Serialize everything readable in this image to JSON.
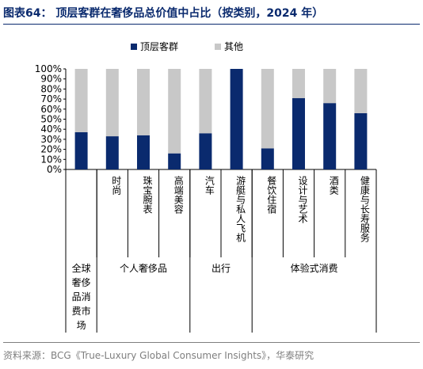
{
  "title": "图表64： 顶层客群在奢侈品总价值中占比（按类别，2024 年）",
  "source": "资料来源：BCG《True-Luxury Global Consumer Insights》，华泰研究",
  "colors": {
    "top": "#0a2a6e",
    "other": "#c8c8c8"
  },
  "chart_data": {
    "type": "bar",
    "stacked": true,
    "categories": [
      "全球奢侈品消费市场",
      "时尚",
      "珠宝腕表",
      "高端美容",
      "汽车",
      "游艇与私人飞机",
      "餐饮住宿",
      "设计与艺术",
      "酒类",
      "健康与长寿服务"
    ],
    "category_labels": [
      "",
      "时尚",
      "珠宝腕表",
      "高端美容",
      "汽车",
      "游艇与私人飞机",
      "餐饮住宿",
      "设计与艺术",
      "酒类",
      "健康与长寿服务"
    ],
    "groups": [
      {
        "label": "全球奢侈品消费市场",
        "members": [
          0
        ]
      },
      {
        "label": "个人奢侈品",
        "members": [
          1,
          2,
          3
        ]
      },
      {
        "label": "出行",
        "members": [
          4,
          5
        ]
      },
      {
        "label": "体验式消费",
        "members": [
          6,
          7,
          8,
          9
        ]
      }
    ],
    "series": [
      {
        "name": "顶层客群",
        "values": [
          37,
          33,
          34,
          16,
          36,
          100,
          21,
          71,
          66,
          56
        ]
      },
      {
        "name": "其他",
        "values": [
          63,
          67,
          66,
          84,
          64,
          0,
          79,
          29,
          34,
          44
        ]
      }
    ],
    "yticks": [
      "0%",
      "10%",
      "20%",
      "30%",
      "40%",
      "50%",
      "60%",
      "70%",
      "80%",
      "90%",
      "100%"
    ],
    "ylim": [
      0,
      100
    ],
    "legend": "top"
  }
}
